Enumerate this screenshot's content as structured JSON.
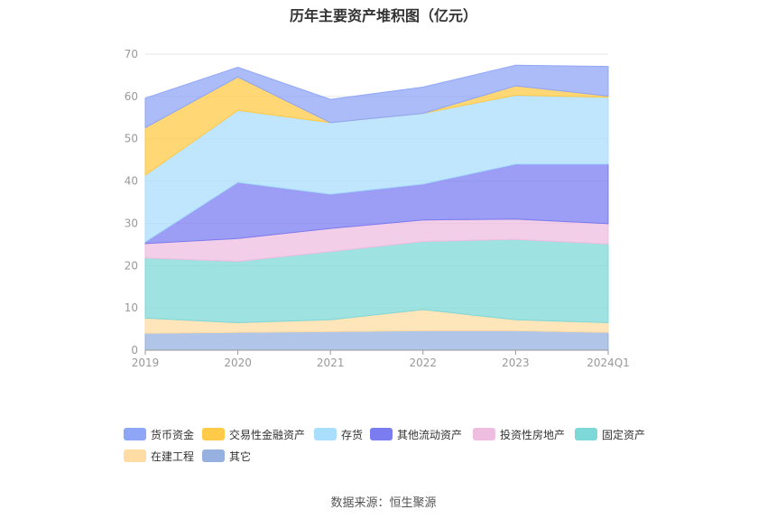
{
  "chart_data": {
    "type": "area",
    "title": "历年主要资产堆积图（亿元）",
    "categories": [
      "2019",
      "2020",
      "2021",
      "2022",
      "2023",
      "2024Q1"
    ],
    "ylim": [
      0,
      70
    ],
    "yticks": [
      "0",
      "10",
      "20",
      "30",
      "40",
      "50",
      "60",
      "70"
    ],
    "stacked": true,
    "series": [
      {
        "name": "其它",
        "color": "#96b1e0",
        "values": [
          4.0,
          4.2,
          4.4,
          4.6,
          4.6,
          4.2
        ]
      },
      {
        "name": "在建工程",
        "color": "#ffdca3",
        "values": [
          3.6,
          2.3,
          2.8,
          5.0,
          2.6,
          2.3
        ]
      },
      {
        "name": "固定资产",
        "color": "#7fd8d8",
        "values": [
          14.2,
          14.5,
          16.1,
          16.1,
          19.0,
          18.6
        ]
      },
      {
        "name": "投资性房地产",
        "color": "#efbde0",
        "values": [
          3.4,
          5.4,
          5.5,
          5.1,
          4.8,
          4.8
        ]
      },
      {
        "name": "其他流动资产",
        "color": "#7b7cf0",
        "values": [
          0.4,
          13.3,
          8.1,
          8.5,
          13.0,
          14.1
        ]
      },
      {
        "name": "存货",
        "color": "#a9defc",
        "values": [
          15.8,
          17.0,
          16.9,
          16.7,
          16.3,
          15.8
        ]
      },
      {
        "name": "交易性金融资产",
        "color": "#ffca47",
        "values": [
          11.2,
          7.9,
          0.0,
          0.0,
          2.2,
          0.3
        ]
      },
      {
        "name": "货币资金",
        "color": "#8fa6f7",
        "values": [
          7.0,
          2.3,
          5.5,
          6.2,
          4.9,
          7.0
        ]
      }
    ],
    "legend_order": [
      "货币资金",
      "交易性金融资产",
      "存货",
      "其他流动资产",
      "投资性房地产",
      "固定资产",
      "在建工程",
      "其它"
    ],
    "legend_position": "bottom",
    "source": "数据来源：恒生聚源"
  }
}
